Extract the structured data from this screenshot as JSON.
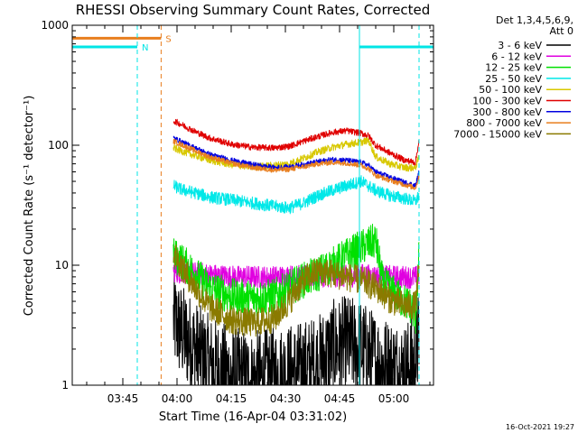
{
  "chart_data": {
    "type": "line",
    "title": "RHESSI Observing Summary Count Rates, Corrected",
    "xlabel": "Start Time (16-Apr-04 03:31:02)",
    "ylabel": "Corrected Count Rate (s⁻¹ detector⁻¹)",
    "yscale": "log",
    "xlim": [
      0,
      100
    ],
    "ylim": [
      1,
      1000
    ],
    "x_unit": "minutes after start time",
    "x_tick_labels": [
      {
        "x": 14,
        "label": "03:45"
      },
      {
        "x": 29,
        "label": "04:00"
      },
      {
        "x": 44,
        "label": "04:15"
      },
      {
        "x": 59,
        "label": "04:30"
      },
      {
        "x": 74,
        "label": "04:45"
      },
      {
        "x": 89,
        "label": "05:00"
      }
    ],
    "y_tick_labels": [
      {
        "y": 1,
        "label": "1"
      },
      {
        "y": 10,
        "label": "10"
      },
      {
        "y": 100,
        "label": "100"
      },
      {
        "y": 1000,
        "label": "1000"
      }
    ],
    "legend_header": [
      "Det 1,3,4,5,6,9,",
      "Att 0"
    ],
    "legend_position": "top-right",
    "footer_timestamp": "16-Oct-2021 19:27",
    "event_markers": [
      {
        "x": 18,
        "label": "N",
        "color": "#00e5e5",
        "style": "dashed"
      },
      {
        "x": 24.6,
        "label": "S",
        "color": "#e87e1e",
        "style": "dashed"
      },
      {
        "x": 79.5,
        "label": "",
        "color": "#00e5e5",
        "style": "solid"
      },
      {
        "x": 96,
        "label": "",
        "color": "#00e5e5",
        "style": "dashed"
      }
    ],
    "flag_bars": [
      {
        "x0": 0,
        "x1": 24.6,
        "y": 780,
        "color": "#e87e1e",
        "label": "S"
      },
      {
        "x0": 0,
        "x1": 18,
        "y": 660,
        "color": "#00e5e5",
        "label": "N"
      },
      {
        "x0": 79.5,
        "x1": 100,
        "y": 660,
        "color": "#00e5e5",
        "label": ""
      }
    ],
    "series": [
      {
        "name": "3 - 6 keV",
        "color": "#000000",
        "noise": 0.95,
        "x": [
          28,
          30,
          34,
          38,
          44,
          50,
          56,
          62,
          68,
          72,
          76,
          80,
          84,
          88,
          92,
          95,
          96
        ],
        "y": [
          3.5,
          2.8,
          2.0,
          1.5,
          1.2,
          1.1,
          1.2,
          1.3,
          1.5,
          2.0,
          2.2,
          2.0,
          1.6,
          1.4,
          1.3,
          1.6,
          2.5
        ]
      },
      {
        "name": "6 - 12 keV",
        "color": "#e000e0",
        "noise": 0.22,
        "x": [
          28,
          30,
          35,
          40,
          45,
          50,
          55,
          60,
          65,
          70,
          75,
          80,
          85,
          90,
          95,
          96
        ],
        "y": [
          9.0,
          8.7,
          8.5,
          8.2,
          8.0,
          8.0,
          7.9,
          8.1,
          8.0,
          8.2,
          8.0,
          8.3,
          8.0,
          8.0,
          7.9,
          8.2
        ]
      },
      {
        "name": "12 - 25 keV",
        "color": "#00e000",
        "noise": 0.35,
        "x": [
          28,
          30,
          34,
          38,
          44,
          50,
          56,
          60,
          64,
          68,
          72,
          76,
          80,
          84,
          86,
          90,
          94,
          95,
          96
        ],
        "y": [
          12,
          11,
          8.5,
          6.5,
          5.5,
          5.3,
          5.5,
          6.5,
          7.5,
          8.5,
          10,
          12,
          14,
          16,
          7.0,
          5.5,
          4.5,
          3.5,
          12
        ]
      },
      {
        "name": "25 - 50 keV",
        "color": "#00e8e8",
        "noise": 0.12,
        "x": [
          28,
          30,
          34,
          38,
          44,
          50,
          56,
          60,
          64,
          68,
          72,
          76,
          80,
          84,
          88,
          92,
          95,
          96
        ],
        "y": [
          46,
          43,
          40,
          37,
          35,
          33,
          31,
          30,
          33,
          38,
          42,
          46,
          50,
          42,
          38,
          36,
          34,
          38
        ]
      },
      {
        "name": "50 - 100 keV",
        "color": "#d8c800",
        "noise": 0.07,
        "x": [
          28,
          30,
          34,
          38,
          44,
          50,
          56,
          60,
          64,
          68,
          72,
          76,
          80,
          82,
          84,
          88,
          92,
          95,
          96
        ],
        "y": [
          95,
          90,
          82,
          75,
          69,
          66,
          68,
          70,
          78,
          88,
          96,
          102,
          106,
          110,
          80,
          70,
          65,
          65,
          80
        ]
      },
      {
        "name": "100 - 300 keV",
        "color": "#e00000",
        "noise": 0.06,
        "x": [
          28,
          30,
          34,
          38,
          44,
          50,
          56,
          60,
          64,
          68,
          72,
          76,
          80,
          82,
          84,
          88,
          92,
          95,
          96
        ],
        "y": [
          160,
          150,
          130,
          115,
          102,
          96,
          95,
          98,
          108,
          118,
          128,
          132,
          126,
          120,
          100,
          86,
          75,
          72,
          110
        ]
      },
      {
        "name": "300 - 800 keV",
        "color": "#0000e0",
        "noise": 0.05,
        "x": [
          28,
          30,
          34,
          38,
          44,
          50,
          56,
          60,
          64,
          68,
          72,
          76,
          80,
          82,
          84,
          88,
          92,
          95,
          96
        ],
        "y": [
          115,
          108,
          95,
          84,
          75,
          69,
          65,
          66,
          69,
          73,
          76,
          75,
          72,
          68,
          60,
          54,
          49,
          46,
          60
        ]
      },
      {
        "name": "800 - 7000 keV",
        "color": "#e87e1e",
        "noise": 0.05,
        "x": [
          28,
          30,
          34,
          38,
          44,
          50,
          56,
          60,
          64,
          68,
          72,
          76,
          80,
          82,
          84,
          88,
          92,
          95,
          96
        ],
        "y": [
          108,
          102,
          90,
          80,
          71,
          65,
          62,
          63,
          66,
          70,
          72,
          71,
          68,
          64,
          56,
          51,
          47,
          44,
          55
        ]
      },
      {
        "name": "7000 - 15000 keV",
        "color": "#8a7a00",
        "noise": 0.28,
        "x": [
          28,
          30,
          34,
          38,
          44,
          50,
          56,
          60,
          64,
          68,
          72,
          76,
          80,
          84,
          88,
          92,
          95,
          96
        ],
        "y": [
          13,
          10,
          6.5,
          4.5,
          3.5,
          3.3,
          3.6,
          5.0,
          7.5,
          9.0,
          8.5,
          8.0,
          7.5,
          6.5,
          5.2,
          4.6,
          4.6,
          9.0
        ]
      }
    ]
  }
}
